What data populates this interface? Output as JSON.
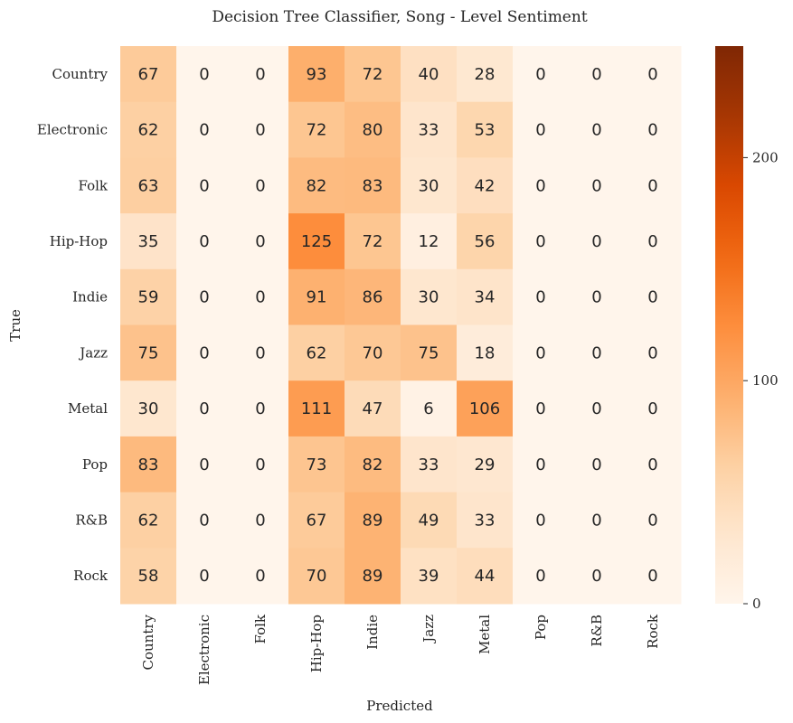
{
  "chart_data": {
    "type": "heatmap",
    "title": "Decision Tree Classifier, Song - Level Sentiment",
    "xlabel": "Predicted",
    "ylabel": "True",
    "x_categories": [
      "Country",
      "Electronic",
      "Folk",
      "Hip-Hop",
      "Indie",
      "Jazz",
      "Metal",
      "Pop",
      "R&B",
      "Rock"
    ],
    "y_categories": [
      "Country",
      "Electronic",
      "Folk",
      "Hip-Hop",
      "Indie",
      "Jazz",
      "Metal",
      "Pop",
      "R&B",
      "Rock"
    ],
    "values": [
      [
        67,
        0,
        0,
        93,
        72,
        40,
        28,
        0,
        0,
        0
      ],
      [
        62,
        0,
        0,
        72,
        80,
        33,
        53,
        0,
        0,
        0
      ],
      [
        63,
        0,
        0,
        82,
        83,
        30,
        42,
        0,
        0,
        0
      ],
      [
        35,
        0,
        0,
        125,
        72,
        12,
        56,
        0,
        0,
        0
      ],
      [
        59,
        0,
        0,
        91,
        86,
        30,
        34,
        0,
        0,
        0
      ],
      [
        75,
        0,
        0,
        62,
        70,
        75,
        18,
        0,
        0,
        0
      ],
      [
        30,
        0,
        0,
        111,
        47,
        6,
        106,
        0,
        0,
        0
      ],
      [
        83,
        0,
        0,
        73,
        82,
        33,
        29,
        0,
        0,
        0
      ],
      [
        62,
        0,
        0,
        67,
        89,
        49,
        33,
        0,
        0,
        0
      ],
      [
        58,
        0,
        0,
        70,
        89,
        39,
        44,
        0,
        0,
        0
      ]
    ],
    "colorbar": {
      "min": 0,
      "max": 250,
      "ticks": [
        0,
        100,
        200
      ],
      "colormap": "Oranges"
    }
  }
}
